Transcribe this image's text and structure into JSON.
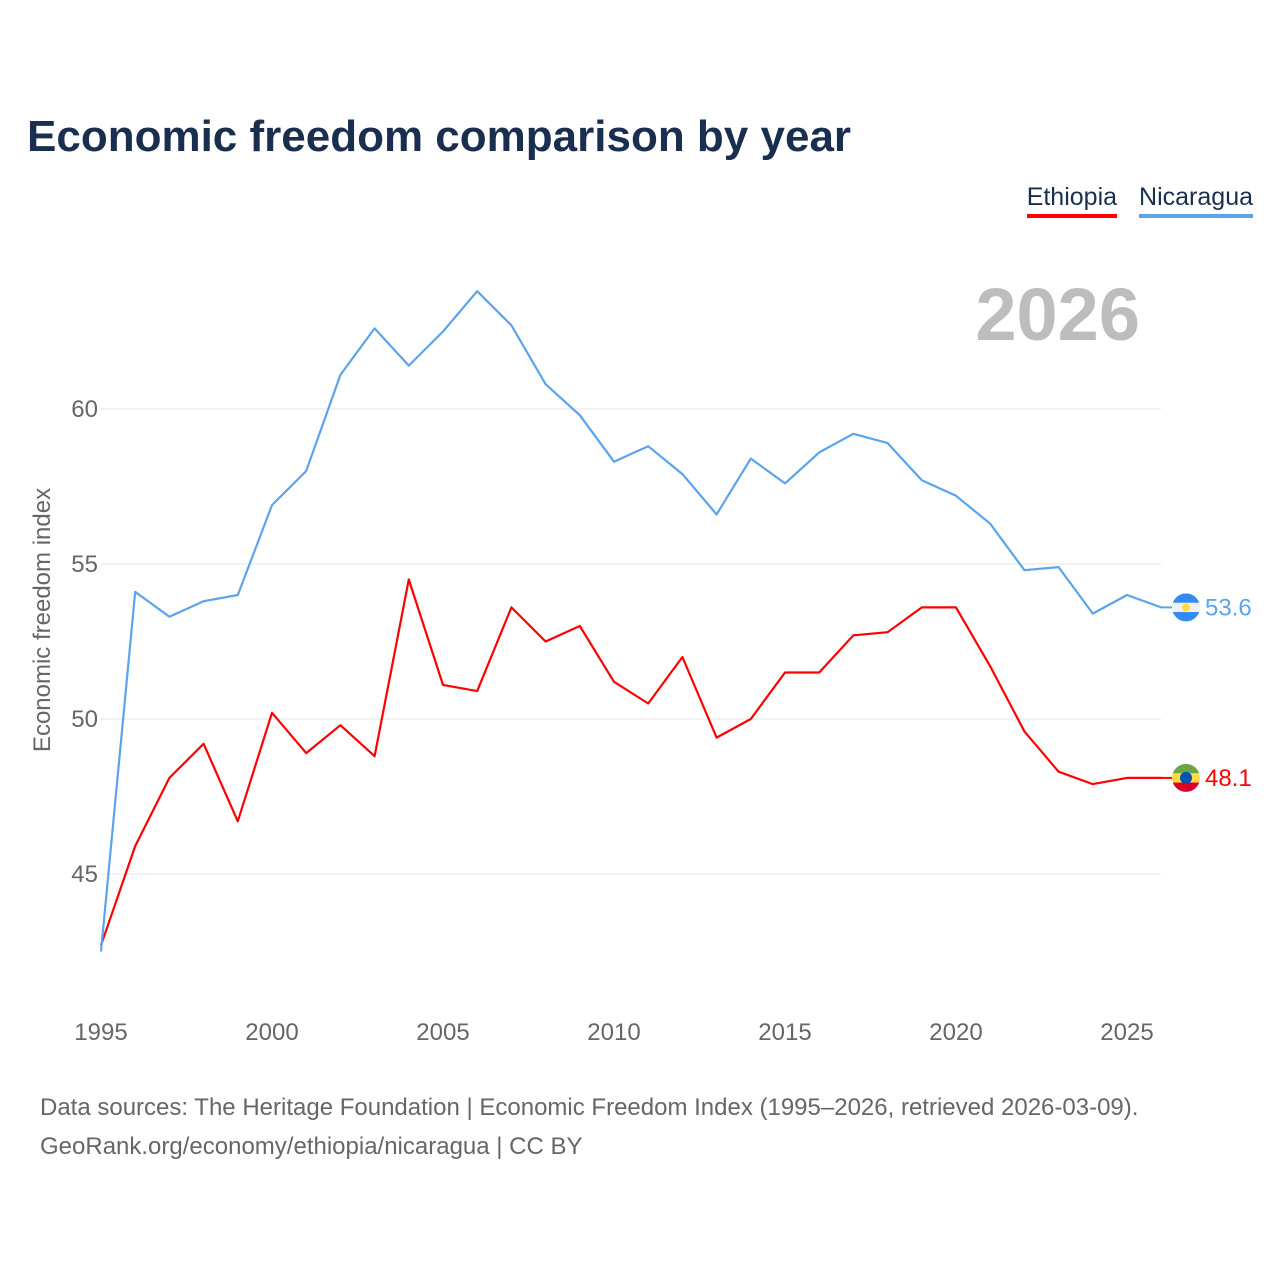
{
  "chart_data": {
    "type": "line",
    "title": "Economic freedom comparison by year",
    "ylabel": "Economic freedom index",
    "xlabel": "",
    "year_watermark": "2026",
    "ylim": [
      41,
      65
    ],
    "xlim": [
      1995,
      2026
    ],
    "yticks": [
      45,
      50,
      55,
      60
    ],
    "xticks": [
      1995,
      2000,
      2005,
      2010,
      2015,
      2020,
      2025
    ],
    "grid": true,
    "legend_position": "top-right",
    "x": [
      1995,
      1996,
      1997,
      1998,
      1999,
      2000,
      2001,
      2002,
      2003,
      2004,
      2005,
      2006,
      2007,
      2008,
      2009,
      2010,
      2011,
      2012,
      2013,
      2014,
      2015,
      2016,
      2017,
      2018,
      2019,
      2020,
      2021,
      2022,
      2023,
      2024,
      2025,
      2026
    ],
    "series": [
      {
        "name": "Ethiopia",
        "color": "#ff0000",
        "end_label": "48.1",
        "values": [
          42.7,
          45.9,
          48.1,
          49.2,
          46.7,
          50.2,
          48.9,
          49.8,
          48.8,
          54.5,
          51.1,
          50.9,
          53.6,
          52.5,
          53.0,
          51.2,
          50.5,
          52.0,
          49.4,
          50.0,
          51.5,
          51.5,
          52.7,
          52.8,
          53.6,
          53.6,
          51.7,
          49.6,
          48.3,
          47.9,
          48.1,
          48.1
        ]
      },
      {
        "name": "Nicaragua",
        "color": "#5ba4ec",
        "end_label": "53.6",
        "values": [
          42.5,
          54.1,
          53.3,
          53.8,
          54.0,
          56.9,
          58.0,
          61.1,
          62.6,
          61.4,
          62.5,
          63.8,
          62.7,
          60.8,
          59.8,
          58.3,
          58.8,
          57.9,
          56.6,
          58.4,
          57.6,
          58.6,
          59.2,
          58.9,
          57.7,
          57.2,
          56.3,
          54.8,
          54.9,
          53.4,
          54.0,
          53.6
        ]
      }
    ]
  },
  "footer": {
    "line1": "Data sources: The Heritage Foundation | Economic Freedom Index (1995–2026, retrieved 2026-03-09).",
    "line2": "GeoRank.org/economy/ethiopia/nicaragua | CC BY"
  }
}
